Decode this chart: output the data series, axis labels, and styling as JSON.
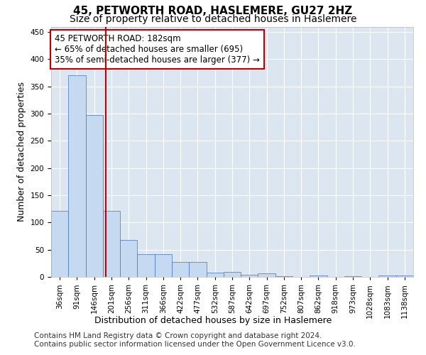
{
  "title": "45, PETWORTH ROAD, HASLEMERE, GU27 2HZ",
  "subtitle": "Size of property relative to detached houses in Haslemere",
  "xlabel": "Distribution of detached houses by size in Haslemere",
  "ylabel": "Number of detached properties",
  "categories": [
    "36sqm",
    "91sqm",
    "146sqm",
    "201sqm",
    "256sqm",
    "311sqm",
    "366sqm",
    "422sqm",
    "477sqm",
    "532sqm",
    "587sqm",
    "642sqm",
    "697sqm",
    "752sqm",
    "807sqm",
    "862sqm",
    "918sqm",
    "973sqm",
    "1028sqm",
    "1083sqm",
    "1138sqm"
  ],
  "bar_heights": [
    122,
    370,
    297,
    122,
    68,
    42,
    42,
    28,
    28,
    8,
    9,
    4,
    6,
    1,
    0,
    2,
    0,
    1,
    0,
    3,
    2
  ],
  "bar_color": "#c5d9f1",
  "bar_edge_color": "#4472c4",
  "vline_x": 2.67,
  "vline_color": "#c00000",
  "annotation_line1": "45 PETWORTH ROAD: 182sqm",
  "annotation_line2": "← 65% of detached houses are smaller (695)",
  "annotation_line3": "35% of semi-detached houses are larger (377) →",
  "annotation_box_color": "#ffffff",
  "annotation_box_edge_color": "#c00000",
  "ylim": [
    0,
    460
  ],
  "yticks": [
    0,
    50,
    100,
    150,
    200,
    250,
    300,
    350,
    400,
    450
  ],
  "plot_background": "#dce6f1",
  "footer_line1": "Contains HM Land Registry data © Crown copyright and database right 2024.",
  "footer_line2": "Contains public sector information licensed under the Open Government Licence v3.0.",
  "title_fontsize": 11,
  "subtitle_fontsize": 10,
  "xlabel_fontsize": 9,
  "ylabel_fontsize": 9,
  "tick_fontsize": 7.5,
  "annotation_fontsize": 8.5,
  "footer_fontsize": 7.5
}
